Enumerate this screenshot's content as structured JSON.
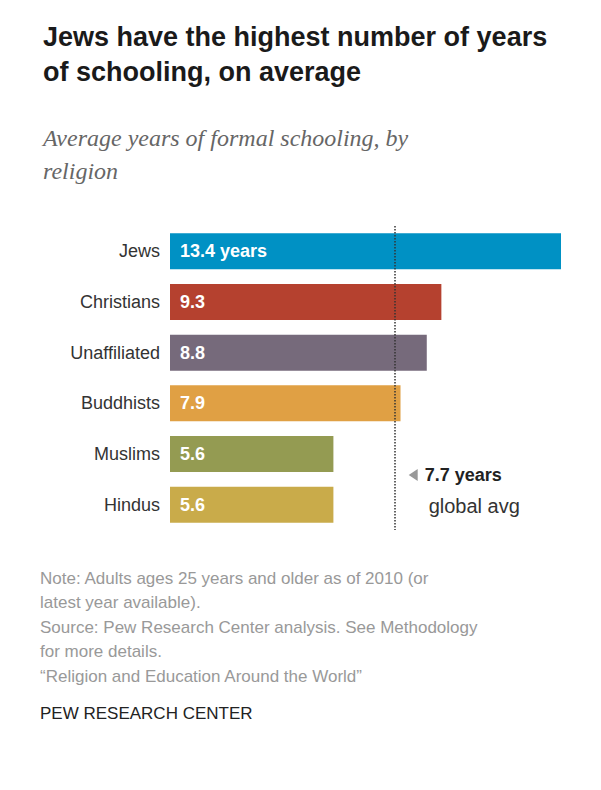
{
  "chart_data": {
    "type": "bar",
    "orientation": "horizontal",
    "title": "Jews have the highest number of years of schooling, on average",
    "subtitle": "Average years of formal schooling, by religion",
    "categories": [
      "Jews",
      "Christians",
      "Unaffiliated",
      "Buddhists",
      "Muslims",
      "Hindus"
    ],
    "values": [
      13.4,
      9.3,
      8.8,
      7.9,
      5.6,
      5.6
    ],
    "value_labels": [
      "13.4 years",
      "9.3",
      "8.8",
      "7.9",
      "5.6",
      "5.6"
    ],
    "colors": [
      "#0091c4",
      "#b5412f",
      "#766a7b",
      "#e0a044",
      "#949b52",
      "#c9ab4a"
    ],
    "data_labels": true,
    "xlim": [
      0,
      13.4
    ],
    "tick_labels": "y",
    "grid": false,
    "reference_line": {
      "value": 7.7,
      "label": "7.7 years",
      "note": "global avg"
    },
    "notes": [
      "Note: Adults ages 25 years and older as of 2010 (or latest year available).",
      "Source: Pew Research Center analysis. See Methodology for more details.",
      "“Religion and Education Around the World”"
    ],
    "credit": "PEW RESEARCH CENTER"
  }
}
